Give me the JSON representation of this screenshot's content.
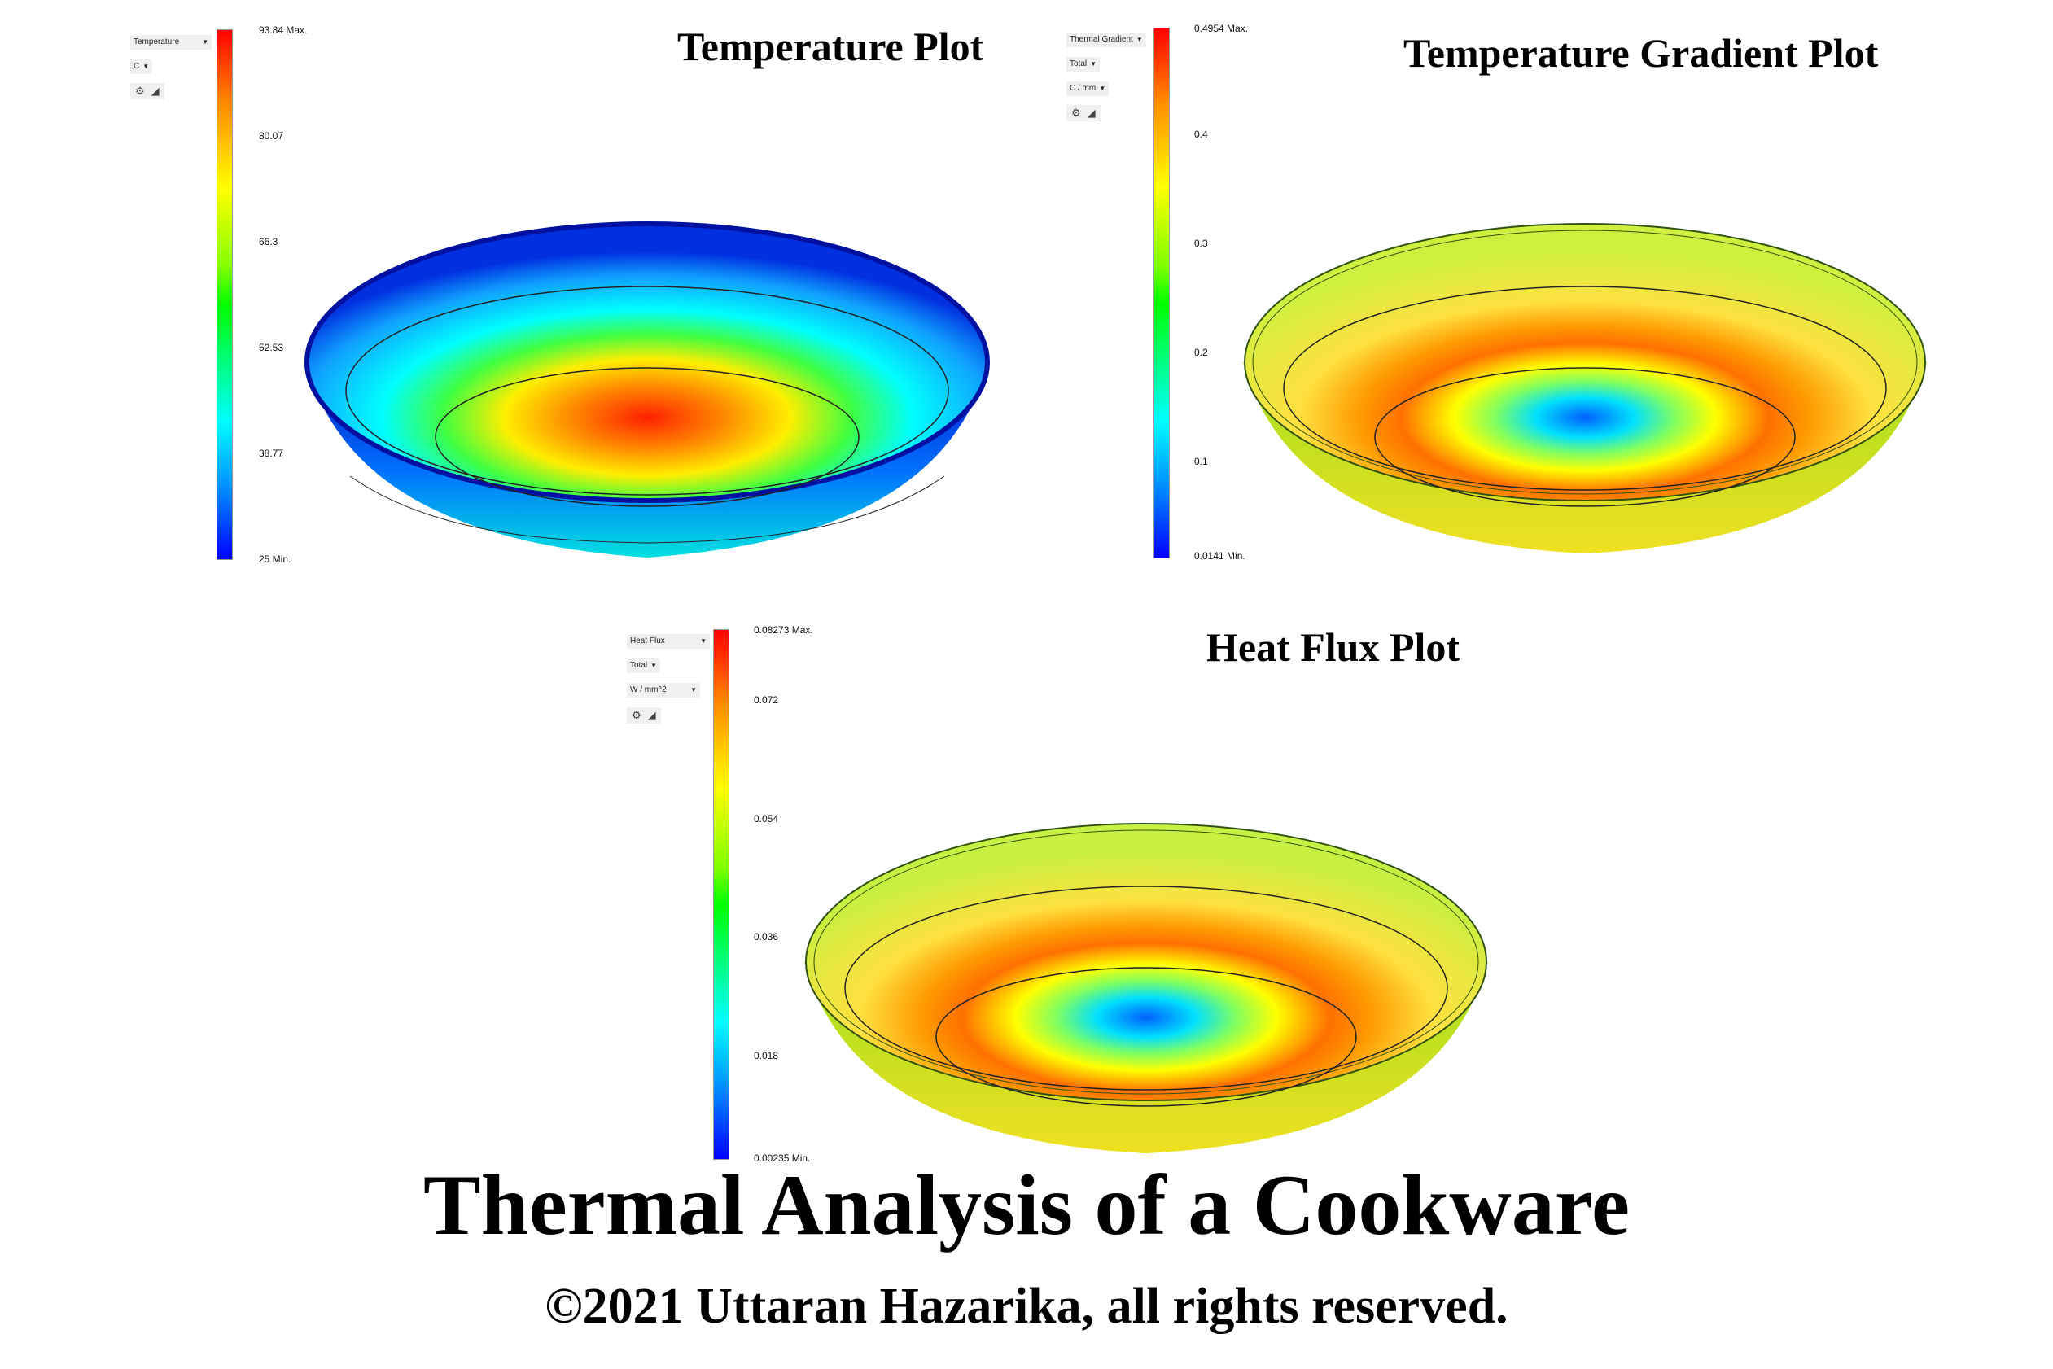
{
  "page": {
    "title": "Thermal Analysis of a Cookware",
    "copyright": "©2021 Uttaran Hazarika, all rights reserved."
  },
  "temperature_plot": {
    "title": "Temperature Plot",
    "result_type": "Temperature",
    "unit": "C",
    "ticks": [
      "93.84 Max.",
      "80.07",
      "66.3",
      "52.53",
      "38.77",
      "25 Min."
    ],
    "max": 93.84,
    "min": 25
  },
  "gradient_plot": {
    "title": "Temperature Gradient Plot",
    "result_type": "Thermal Gradient",
    "component": "Total",
    "unit": "C / mm",
    "ticks": [
      "0.4954 Max.",
      "0.4",
      "0.3",
      "0.2",
      "0.1",
      "0.0141 Min."
    ],
    "max": 0.4954,
    "min": 0.0141
  },
  "flux_plot": {
    "title": "Heat Flux Plot",
    "result_type": "Heat Flux",
    "component": "Total",
    "unit": "W / mm^2",
    "ticks": [
      "0.08273 Max.",
      "0.072",
      "0.054",
      "0.036",
      "0.018",
      "0.00235 Min."
    ],
    "max": 0.08273,
    "min": 0.00235
  },
  "colors": {
    "max": "#ff0000",
    "min": "#0000ff"
  },
  "icons": [
    "gear-icon",
    "probe-icon",
    "dropdown-arrow-icon"
  ]
}
